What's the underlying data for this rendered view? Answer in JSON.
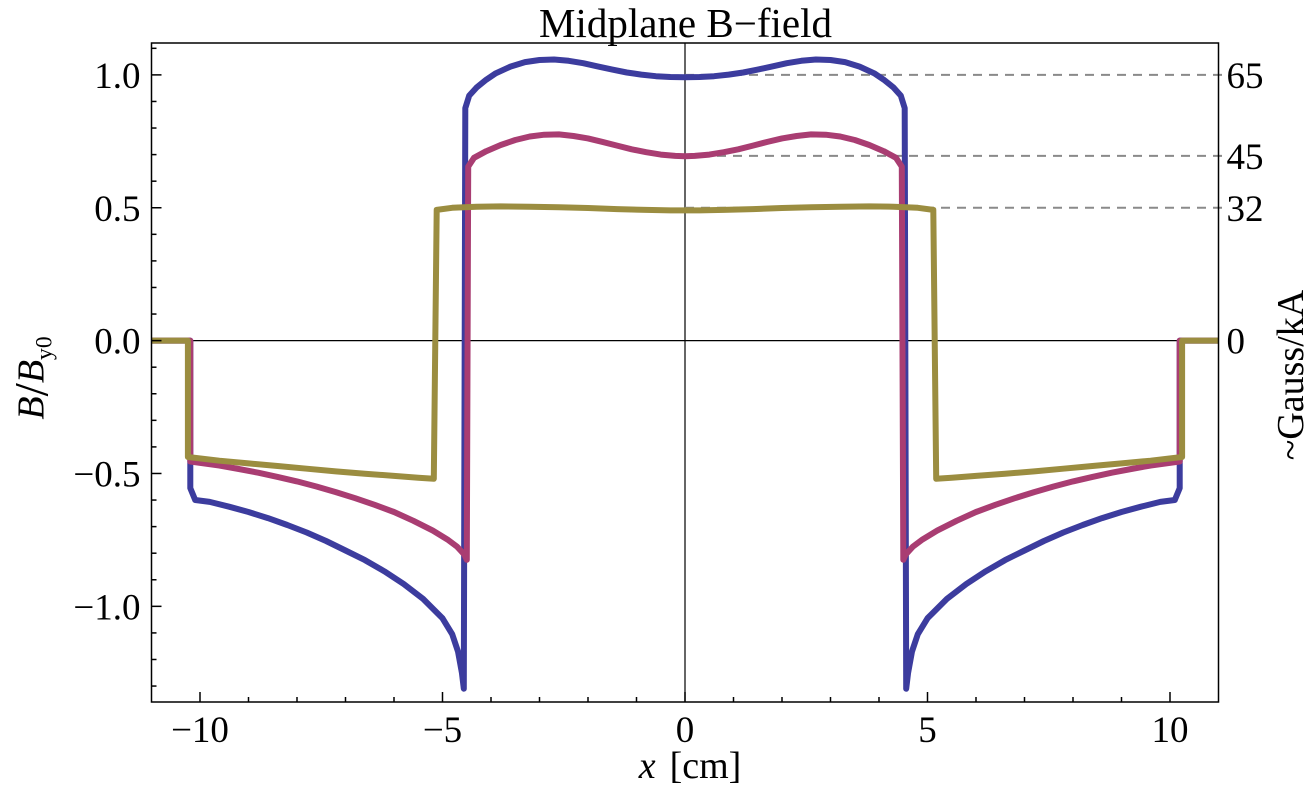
{
  "chart_data": {
    "type": "line",
    "title": "Midplane B−field",
    "xlabel": {
      "variable": "x",
      "unit": "[cm]"
    },
    "ylabel": {
      "numerator": "B",
      "slash": "/",
      "denominator": "B",
      "subscript": "y0"
    },
    "right_axis_label": "~Gauss/kA",
    "x_range": [
      -11,
      11
    ],
    "y_range": [
      -1.36,
      1.12
    ],
    "x_ticks": {
      "major": [
        -10,
        -5,
        0,
        5,
        10
      ],
      "labels": [
        "−10",
        "−5",
        "0",
        "5",
        "10"
      ],
      "minor_step": 1
    },
    "y_ticks": {
      "major": [
        -1.0,
        -0.5,
        0.0,
        0.5,
        1.0
      ],
      "labels": [
        "−1.0",
        "−0.5",
        "0.0",
        "0.5",
        "1.0"
      ],
      "minor_step": 0.1
    },
    "axes_origin_lines": true,
    "grid": false,
    "legend": "none",
    "reference_lines": [
      {
        "value": 1.0,
        "label": "65",
        "dashed": true
      },
      {
        "value": 0.695,
        "label": "45",
        "dashed": true
      },
      {
        "value": 0.5,
        "label": "32",
        "dashed": true
      },
      {
        "value": 0.0,
        "label": "0",
        "dashed": false
      }
    ],
    "colors": {
      "blue": "#3c3c9e",
      "purple": "#a93d72",
      "olive": "#9b8d40",
      "dash": "#8a8a8a",
      "frame": "#000000"
    },
    "series": [
      {
        "name": "blue",
        "color": "blue",
        "center_value": 1.0,
        "right_label": "65",
        "points": [
          [
            -11,
            0
          ],
          [
            -10.2,
            0
          ],
          [
            -10.2,
            -0.555
          ],
          [
            -10.1,
            -0.6
          ],
          [
            -9.8,
            -0.607
          ],
          [
            -9.4,
            -0.625
          ],
          [
            -9.0,
            -0.645
          ],
          [
            -8.6,
            -0.668
          ],
          [
            -8.2,
            -0.694
          ],
          [
            -7.8,
            -0.722
          ],
          [
            -7.4,
            -0.754
          ],
          [
            -7.0,
            -0.79
          ],
          [
            -6.6,
            -0.826
          ],
          [
            -6.2,
            -0.868
          ],
          [
            -5.8,
            -0.916
          ],
          [
            -5.4,
            -0.972
          ],
          [
            -5.0,
            -1.045
          ],
          [
            -4.8,
            -1.105
          ],
          [
            -4.68,
            -1.17
          ],
          [
            -4.6,
            -1.25
          ],
          [
            -4.56,
            -1.31
          ],
          [
            -4.53,
            0.875
          ],
          [
            -4.45,
            0.922
          ],
          [
            -4.3,
            0.952
          ],
          [
            -4.1,
            0.982
          ],
          [
            -3.9,
            1.006
          ],
          [
            -3.6,
            1.031
          ],
          [
            -3.3,
            1.048
          ],
          [
            -3.0,
            1.056
          ],
          [
            -2.7,
            1.058
          ],
          [
            -2.4,
            1.053
          ],
          [
            -2.1,
            1.044
          ],
          [
            -1.8,
            1.032
          ],
          [
            -1.5,
            1.02
          ],
          [
            -1.2,
            1.009
          ],
          [
            -0.9,
            1.001
          ],
          [
            -0.6,
            0.995
          ],
          [
            -0.3,
            0.992
          ],
          [
            0,
            0.991
          ],
          [
            0.3,
            0.992
          ],
          [
            0.6,
            0.995
          ],
          [
            0.9,
            1.001
          ],
          [
            1.2,
            1.009
          ],
          [
            1.5,
            1.02
          ],
          [
            1.8,
            1.032
          ],
          [
            2.1,
            1.044
          ],
          [
            2.4,
            1.053
          ],
          [
            2.7,
            1.058
          ],
          [
            3.0,
            1.056
          ],
          [
            3.3,
            1.048
          ],
          [
            3.6,
            1.031
          ],
          [
            3.9,
            1.006
          ],
          [
            4.1,
            0.982
          ],
          [
            4.3,
            0.952
          ],
          [
            4.45,
            0.922
          ],
          [
            4.53,
            0.875
          ],
          [
            4.56,
            -1.31
          ],
          [
            4.6,
            -1.25
          ],
          [
            4.68,
            -1.17
          ],
          [
            4.8,
            -1.105
          ],
          [
            5.0,
            -1.045
          ],
          [
            5.4,
            -0.972
          ],
          [
            5.8,
            -0.916
          ],
          [
            6.2,
            -0.868
          ],
          [
            6.6,
            -0.826
          ],
          [
            7.0,
            -0.79
          ],
          [
            7.4,
            -0.754
          ],
          [
            7.8,
            -0.722
          ],
          [
            8.2,
            -0.694
          ],
          [
            8.6,
            -0.668
          ],
          [
            9.0,
            -0.645
          ],
          [
            9.4,
            -0.625
          ],
          [
            9.8,
            -0.607
          ],
          [
            10.1,
            -0.6
          ],
          [
            10.2,
            -0.555
          ],
          [
            10.2,
            0
          ],
          [
            11,
            0
          ]
        ]
      },
      {
        "name": "purple",
        "color": "purple",
        "center_value": 0.695,
        "right_label": "45",
        "points": [
          [
            -11,
            0
          ],
          [
            -10.2,
            0
          ],
          [
            -10.2,
            -0.455
          ],
          [
            -9.6,
            -0.47
          ],
          [
            -9.2,
            -0.483
          ],
          [
            -8.8,
            -0.497
          ],
          [
            -8.4,
            -0.513
          ],
          [
            -8.0,
            -0.53
          ],
          [
            -7.6,
            -0.549
          ],
          [
            -7.2,
            -0.57
          ],
          [
            -6.8,
            -0.593
          ],
          [
            -6.4,
            -0.618
          ],
          [
            -6.0,
            -0.645
          ],
          [
            -5.6,
            -0.678
          ],
          [
            -5.2,
            -0.715
          ],
          [
            -4.9,
            -0.748
          ],
          [
            -4.7,
            -0.775
          ],
          [
            -4.55,
            -0.805
          ],
          [
            -4.5,
            -0.825
          ],
          [
            -4.47,
            0.655
          ],
          [
            -4.35,
            0.688
          ],
          [
            -4.1,
            0.713
          ],
          [
            -3.8,
            0.736
          ],
          [
            -3.5,
            0.755
          ],
          [
            -3.2,
            0.768
          ],
          [
            -2.9,
            0.775
          ],
          [
            -2.6,
            0.776
          ],
          [
            -2.3,
            0.77
          ],
          [
            -2.0,
            0.761
          ],
          [
            -1.7,
            0.748
          ],
          [
            -1.4,
            0.734
          ],
          [
            -1.1,
            0.72
          ],
          [
            -0.8,
            0.709
          ],
          [
            -0.5,
            0.7
          ],
          [
            -0.2,
            0.695
          ],
          [
            0,
            0.694
          ],
          [
            0.2,
            0.695
          ],
          [
            0.5,
            0.7
          ],
          [
            0.8,
            0.709
          ],
          [
            1.1,
            0.72
          ],
          [
            1.4,
            0.734
          ],
          [
            1.7,
            0.748
          ],
          [
            2.0,
            0.761
          ],
          [
            2.3,
            0.77
          ],
          [
            2.6,
            0.776
          ],
          [
            2.9,
            0.775
          ],
          [
            3.2,
            0.768
          ],
          [
            3.5,
            0.755
          ],
          [
            3.8,
            0.736
          ],
          [
            4.1,
            0.713
          ],
          [
            4.35,
            0.688
          ],
          [
            4.47,
            0.655
          ],
          [
            4.5,
            -0.825
          ],
          [
            4.55,
            -0.805
          ],
          [
            4.7,
            -0.775
          ],
          [
            4.9,
            -0.748
          ],
          [
            5.2,
            -0.715
          ],
          [
            5.6,
            -0.678
          ],
          [
            6.0,
            -0.645
          ],
          [
            6.4,
            -0.618
          ],
          [
            6.8,
            -0.593
          ],
          [
            7.2,
            -0.57
          ],
          [
            7.6,
            -0.549
          ],
          [
            8.0,
            -0.53
          ],
          [
            8.4,
            -0.513
          ],
          [
            8.8,
            -0.497
          ],
          [
            9.2,
            -0.483
          ],
          [
            9.6,
            -0.47
          ],
          [
            10.2,
            -0.455
          ],
          [
            10.2,
            0
          ],
          [
            11,
            0
          ]
        ]
      },
      {
        "name": "olive",
        "color": "olive",
        "center_value": 0.49,
        "right_label": "32",
        "points": [
          [
            -11,
            0
          ],
          [
            -10.25,
            0
          ],
          [
            -10.25,
            -0.438
          ],
          [
            -9.6,
            -0.452
          ],
          [
            -9.0,
            -0.462
          ],
          [
            -8.4,
            -0.472
          ],
          [
            -7.8,
            -0.482
          ],
          [
            -7.2,
            -0.492
          ],
          [
            -6.6,
            -0.501
          ],
          [
            -6.0,
            -0.509
          ],
          [
            -5.5,
            -0.516
          ],
          [
            -5.18,
            -0.52
          ],
          [
            -5.12,
            0.492
          ],
          [
            -4.8,
            0.5
          ],
          [
            -4.3,
            0.504
          ],
          [
            -3.8,
            0.505
          ],
          [
            -3.2,
            0.504
          ],
          [
            -2.6,
            0.502
          ],
          [
            -2.0,
            0.499
          ],
          [
            -1.4,
            0.495
          ],
          [
            -0.8,
            0.492
          ],
          [
            -0.3,
            0.49
          ],
          [
            0,
            0.49
          ],
          [
            0.3,
            0.49
          ],
          [
            0.8,
            0.492
          ],
          [
            1.4,
            0.495
          ],
          [
            2.0,
            0.499
          ],
          [
            2.6,
            0.502
          ],
          [
            3.2,
            0.504
          ],
          [
            3.8,
            0.505
          ],
          [
            4.3,
            0.504
          ],
          [
            4.8,
            0.5
          ],
          [
            5.12,
            0.492
          ],
          [
            5.18,
            -0.52
          ],
          [
            5.5,
            -0.516
          ],
          [
            6.0,
            -0.509
          ],
          [
            6.6,
            -0.501
          ],
          [
            7.2,
            -0.492
          ],
          [
            7.8,
            -0.482
          ],
          [
            8.4,
            -0.472
          ],
          [
            9.0,
            -0.462
          ],
          [
            9.6,
            -0.452
          ],
          [
            10.25,
            -0.438
          ],
          [
            10.25,
            0
          ],
          [
            11,
            0
          ]
        ]
      }
    ]
  }
}
